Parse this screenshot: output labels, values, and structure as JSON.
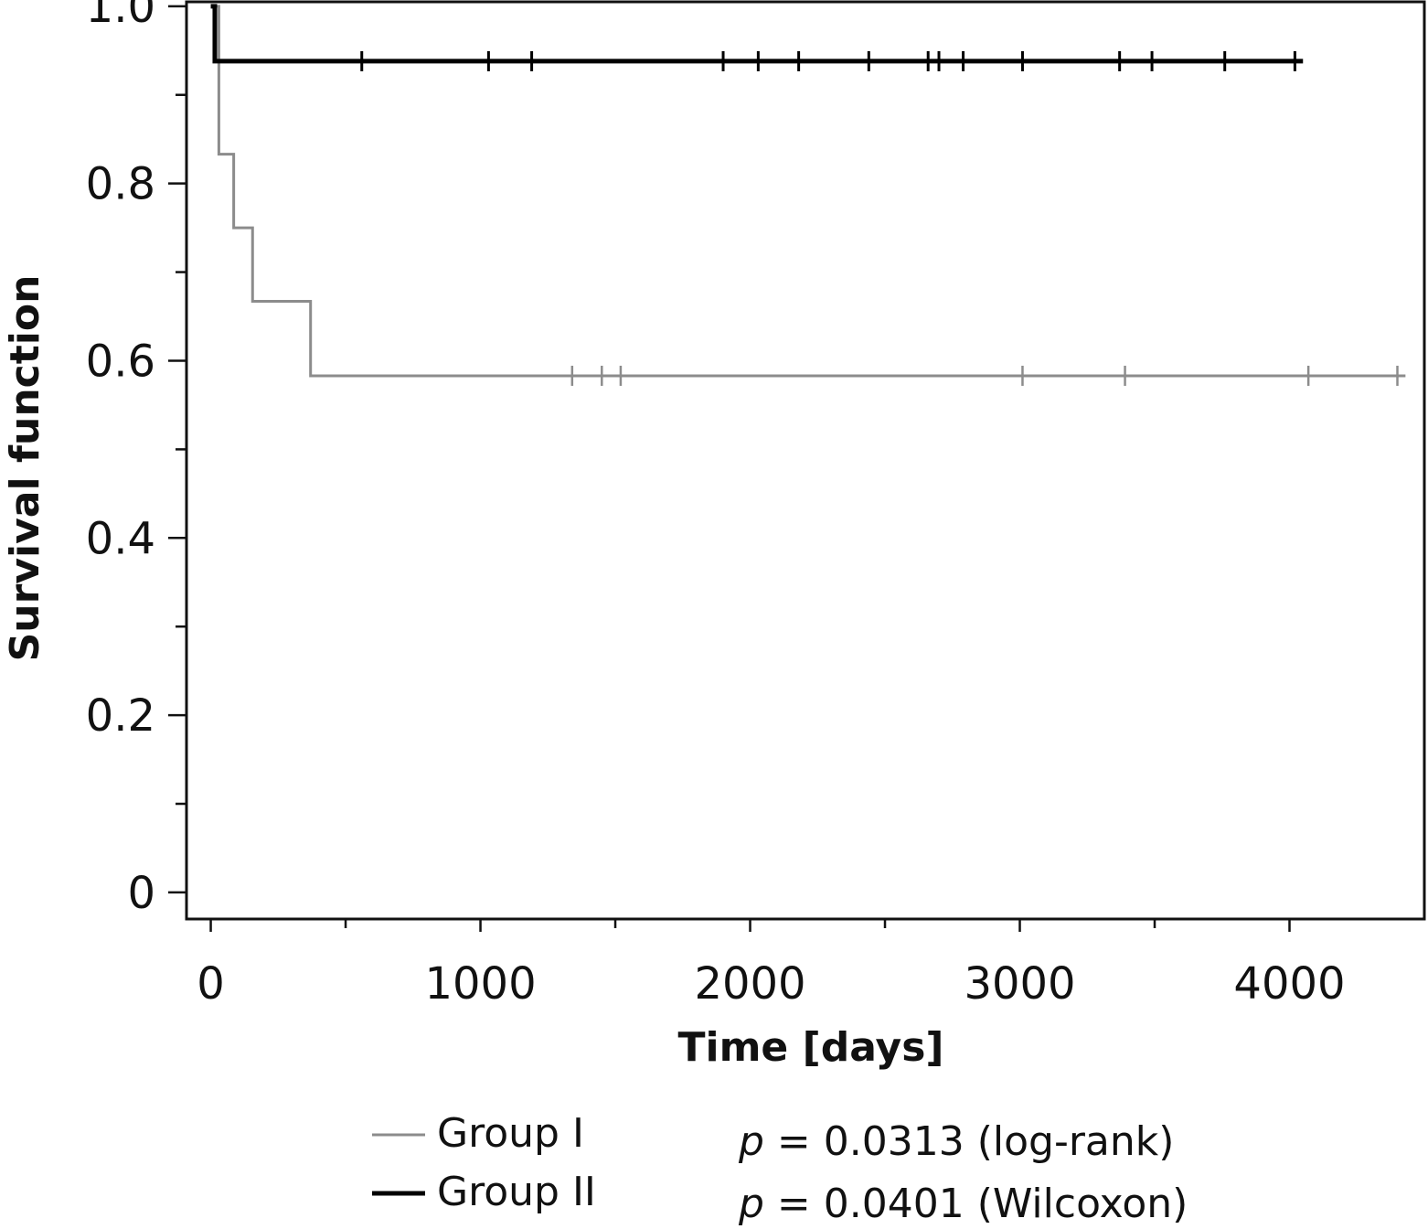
{
  "chart_data": {
    "type": "line",
    "subtype": "kaplan-meier",
    "title": "",
    "xlabel": "Time [days]",
    "ylabel": "Survival function",
    "xlim": [
      -90,
      4500
    ],
    "ylim": [
      -0.03,
      1.005
    ],
    "x_ticks_major": [
      0,
      1000,
      2000,
      3000,
      4000
    ],
    "x_tick_labels": [
      "0",
      "1000",
      "2000",
      "3000",
      "4000"
    ],
    "x_ticks_minor": [
      500,
      1500,
      2500,
      3500
    ],
    "y_ticks_major": [
      0,
      0.2,
      0.4,
      0.6,
      0.8,
      1.0
    ],
    "y_tick_labels": [
      "0",
      "0.2",
      "0.4",
      "0.6",
      "0.8",
      "1.0"
    ],
    "y_ticks_minor": [
      0.1,
      0.3,
      0.5,
      0.7,
      0.9
    ],
    "grid": false,
    "legend_position": "bottom-left",
    "series": [
      {
        "name": "Group I",
        "color": "#8c8c8c",
        "steps": [
          [
            0,
            1.0
          ],
          [
            30,
            0.833
          ],
          [
            85,
            0.75
          ],
          [
            155,
            0.667
          ],
          [
            370,
            0.583
          ]
        ],
        "end_x": 4430,
        "censored": [
          1340,
          1450,
          1520,
          3010,
          3390,
          4070,
          4400
        ]
      },
      {
        "name": "Group II",
        "color": "#000000",
        "steps": [
          [
            0,
            1.0
          ],
          [
            15,
            0.938
          ]
        ],
        "end_x": 4050,
        "censored": [
          560,
          1030,
          1190,
          1900,
          2030,
          2180,
          2440,
          2660,
          2700,
          2790,
          3010,
          3370,
          3490,
          3760,
          4020
        ]
      }
    ],
    "annotations": [
      {
        "italic": "p",
        "text": " = 0.0313 (log-rank)"
      },
      {
        "italic": "p",
        "text": " = 0.0401 (Wilcoxon)"
      }
    ]
  }
}
